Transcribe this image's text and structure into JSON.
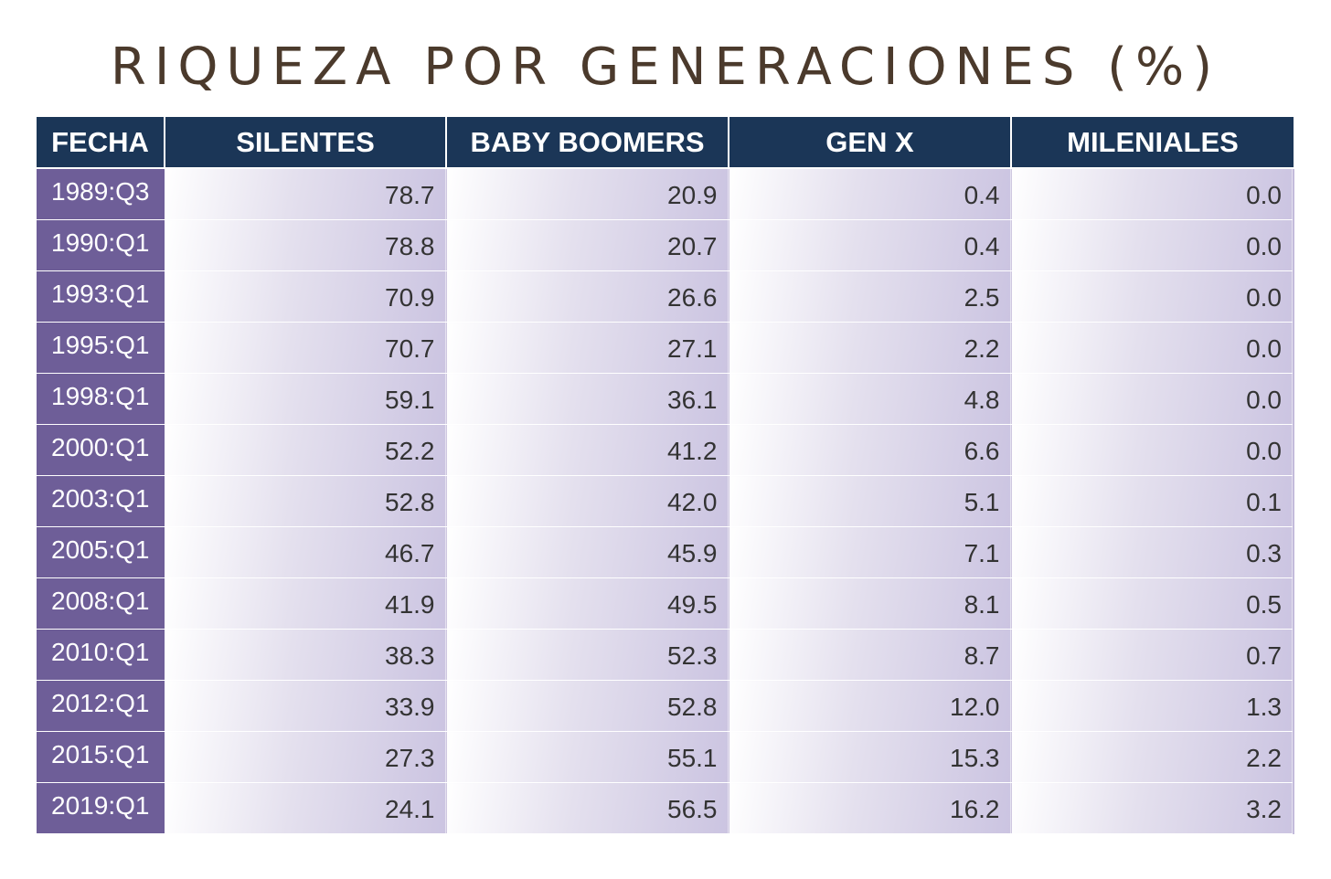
{
  "title": "RIQUEZA POR GENERACIONES (%)",
  "chart_data": {
    "type": "table",
    "title": "RIQUEZA POR GENERACIONES (%)",
    "columns": [
      "FECHA",
      "SILENTES",
      "BABY BOOMERS",
      "GEN X",
      "MILENIALES"
    ],
    "rows": [
      [
        "1989:Q3",
        "78.7",
        "20.9",
        "0.4",
        "0.0"
      ],
      [
        "1990:Q1",
        "78.8",
        "20.7",
        "0.4",
        "0.0"
      ],
      [
        "1993:Q1",
        "70.9",
        "26.6",
        "2.5",
        "0.0"
      ],
      [
        "1995:Q1",
        "70.7",
        "27.1",
        "2.2",
        "0.0"
      ],
      [
        "1998:Q1",
        "59.1",
        "36.1",
        "4.8",
        "0.0"
      ],
      [
        "2000:Q1",
        "52.2",
        "41.2",
        "6.6",
        "0.0"
      ],
      [
        "2003:Q1",
        "52.8",
        "42.0",
        "5.1",
        "0.1"
      ],
      [
        "2005:Q1",
        "46.7",
        "45.9",
        "7.1",
        "0.3"
      ],
      [
        "2008:Q1",
        "41.9",
        "49.5",
        "8.1",
        "0.5"
      ],
      [
        "2010:Q1",
        "38.3",
        "52.3",
        "8.7",
        "0.7"
      ],
      [
        "2012:Q1",
        "33.9",
        "52.8",
        "12.0",
        "1.3"
      ],
      [
        "2015:Q1",
        "27.3",
        "55.1",
        "15.3",
        "2.2"
      ],
      [
        "2019:Q1",
        "24.1",
        "56.5",
        "16.2",
        "3.2"
      ]
    ]
  },
  "colors": {
    "header_background": "#1b3657",
    "date_column_background": "#6e5e98",
    "title_text": "#4b3a2c",
    "cell_gradient_light": "#ffffff",
    "cell_gradient_dark": "#cbc4e1"
  }
}
